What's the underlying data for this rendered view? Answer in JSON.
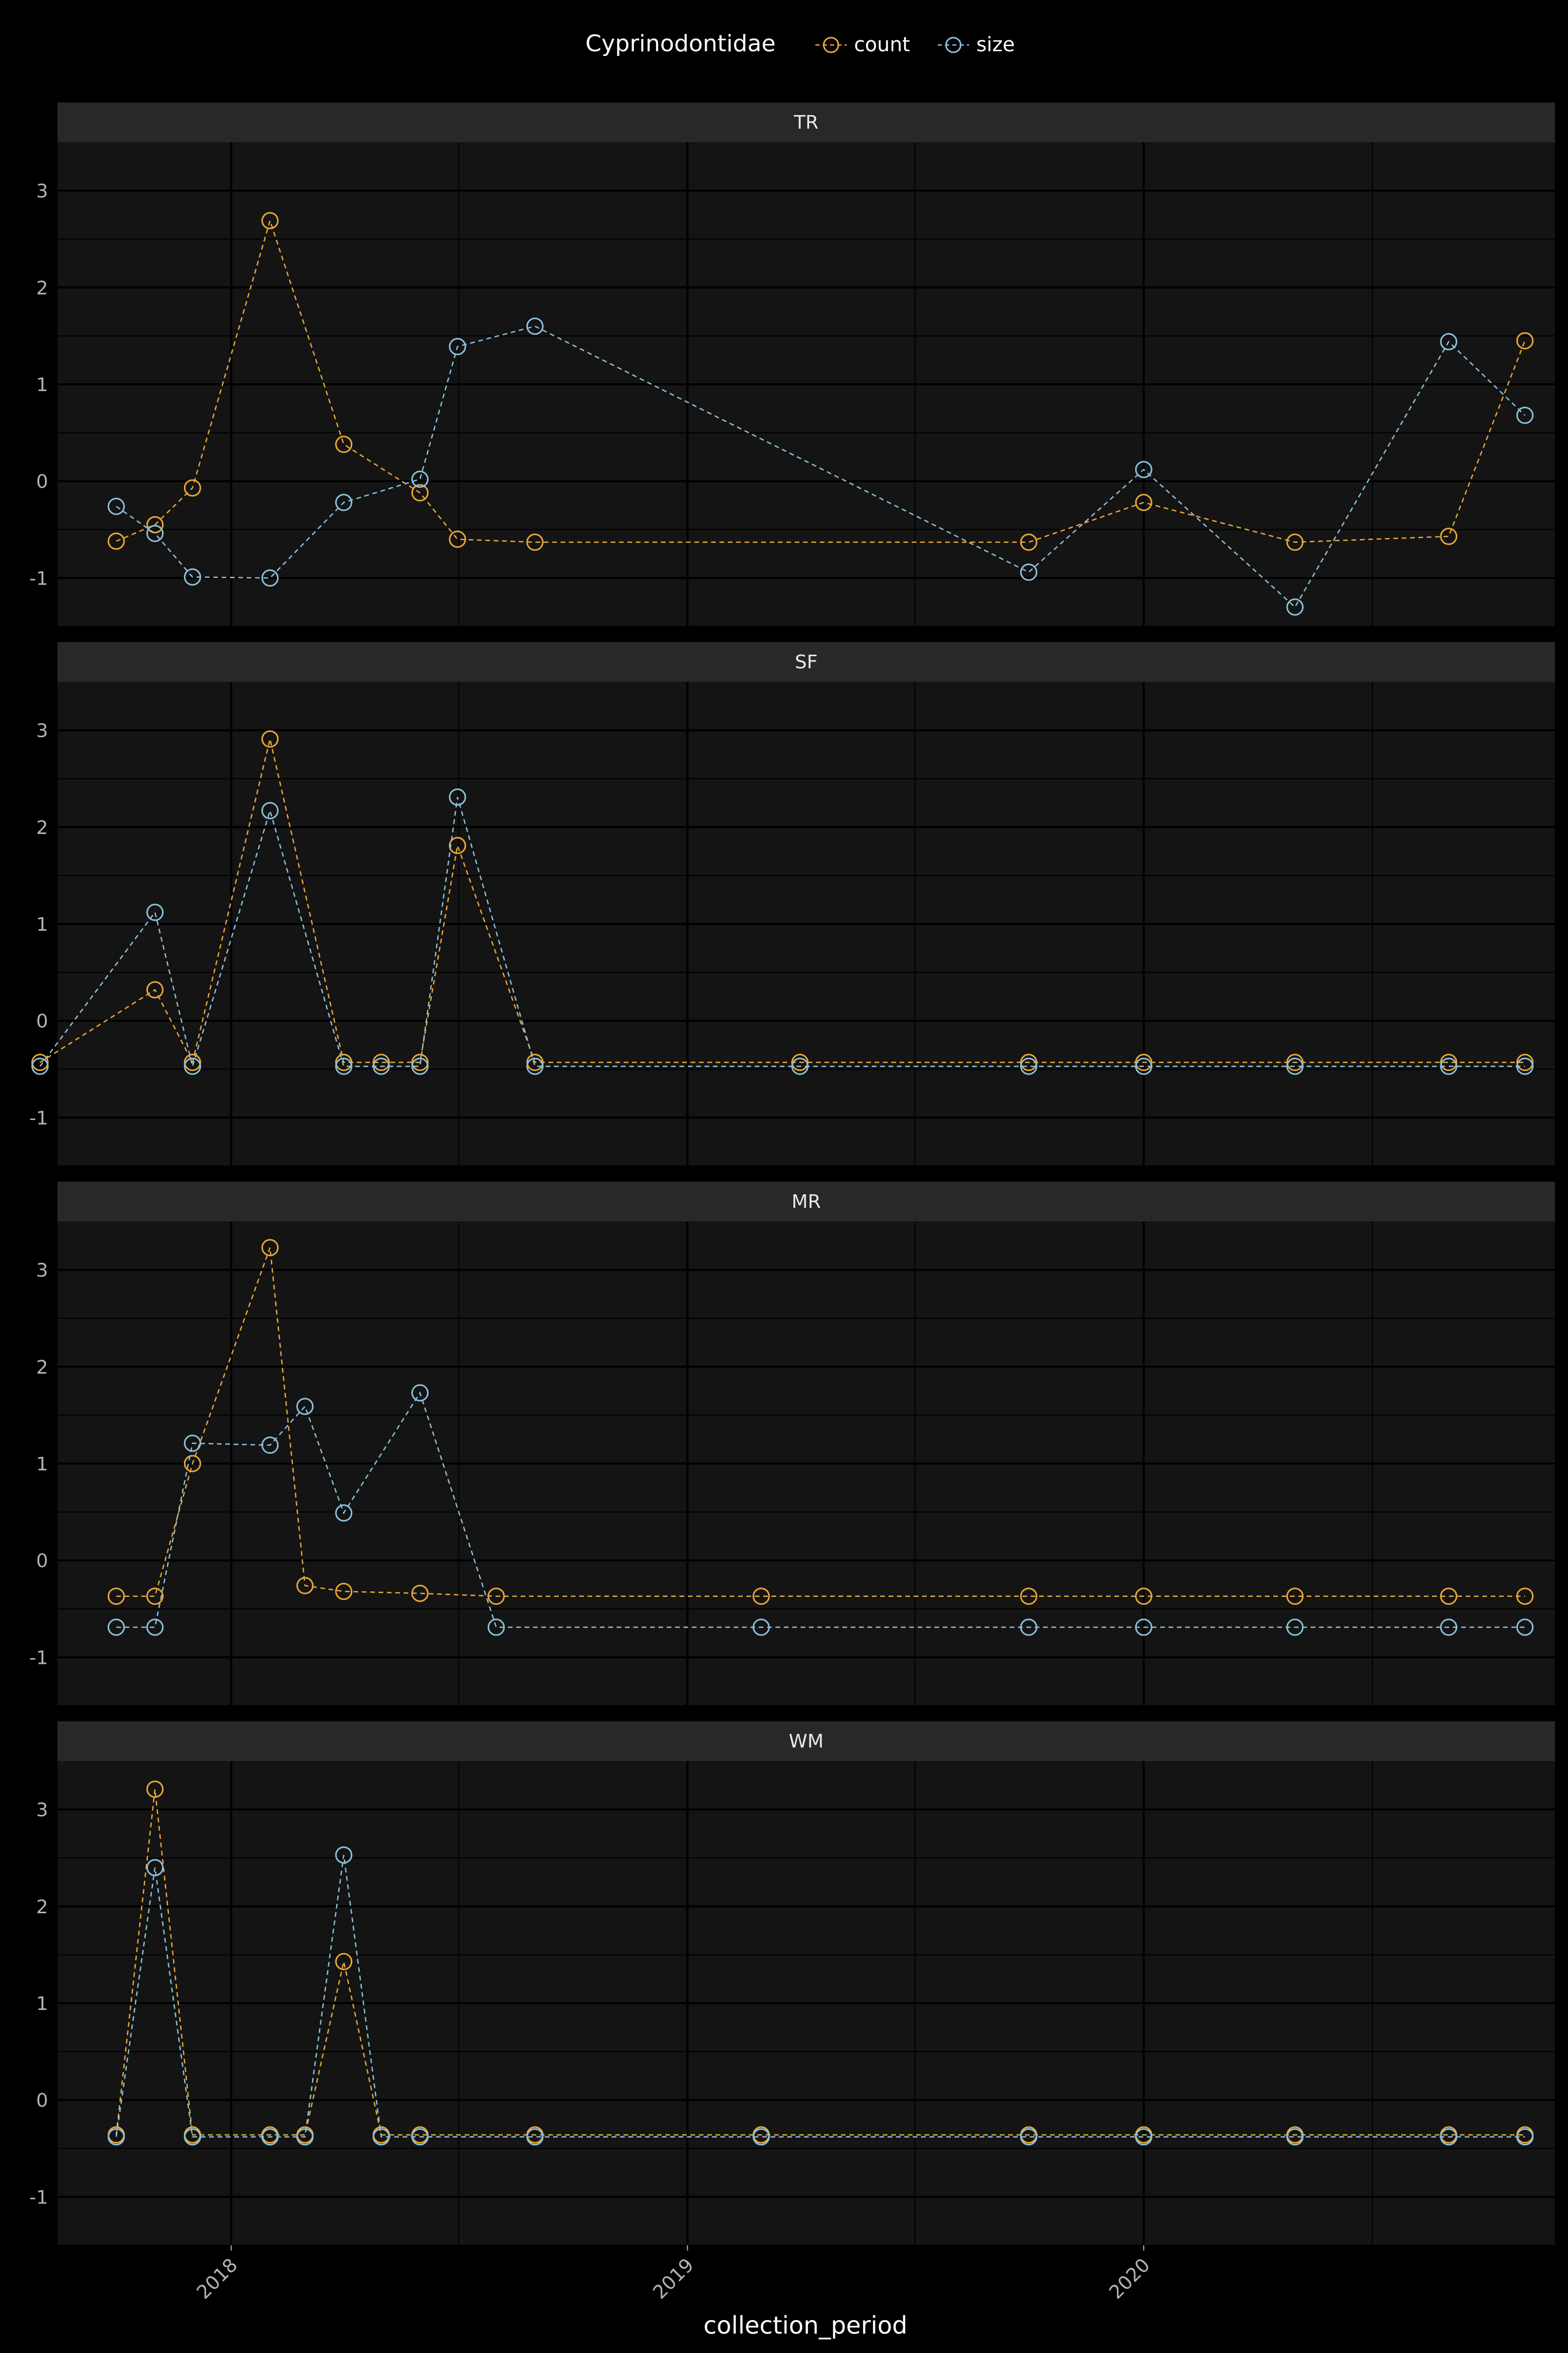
{
  "chart_data": {
    "type": "line",
    "facet_by": "site",
    "legend": {
      "title": "Cyprinodontidae",
      "position": "top"
    },
    "xlabel": "collection_period",
    "ylabel": "",
    "x_ticks": [
      "2018",
      "2019",
      "2020"
    ],
    "x_range": [
      "2017-08-15",
      "2020-11-25"
    ],
    "y_ticks": [
      -1,
      0,
      1,
      2,
      3
    ],
    "ylim": [
      -1.5,
      3.5
    ],
    "grid": true,
    "series_styles": [
      {
        "name": "count",
        "color": "#e8a736"
      },
      {
        "name": "size",
        "color": "#8cc0da"
      }
    ],
    "panels": [
      {
        "label": "TR",
        "series": [
          {
            "name": "count",
            "points": [
              [
                "2017-10-01",
                -0.62
              ],
              [
                "2017-11-01",
                -0.45
              ],
              [
                "2017-12-01",
                -0.07
              ],
              [
                "2018-02-01",
                2.69
              ],
              [
                "2018-04-01",
                0.38
              ],
              [
                "2018-06-01",
                -0.12
              ],
              [
                "2018-07-01",
                -0.6
              ],
              [
                "2018-09-01",
                -0.63
              ],
              [
                "2019-10-01",
                -0.63
              ],
              [
                "2020-01-01",
                -0.22
              ],
              [
                "2020-05-01",
                -0.63
              ],
              [
                "2020-09-01",
                -0.57
              ],
              [
                "2020-11-01",
                1.45
              ]
            ]
          },
          {
            "name": "size",
            "points": [
              [
                "2017-10-01",
                -0.26
              ],
              [
                "2017-11-01",
                -0.54
              ],
              [
                "2017-12-01",
                -0.99
              ],
              [
                "2018-02-01",
                -1.0
              ],
              [
                "2018-04-01",
                -0.22
              ],
              [
                "2018-06-01",
                0.02
              ],
              [
                "2018-07-01",
                1.39
              ],
              [
                "2018-09-01",
                1.6
              ],
              [
                "2019-10-01",
                -0.94
              ],
              [
                "2020-01-01",
                0.12
              ],
              [
                "2020-05-01",
                -1.3
              ],
              [
                "2020-09-01",
                1.44
              ],
              [
                "2020-11-01",
                0.68
              ]
            ]
          }
        ]
      },
      {
        "label": "SF",
        "series": [
          {
            "name": "count",
            "points": [
              [
                "2017-08-01",
                -0.43
              ],
              [
                "2017-11-01",
                0.32
              ],
              [
                "2017-12-01",
                -0.43
              ],
              [
                "2018-02-01",
                2.91
              ],
              [
                "2018-04-01",
                -0.43
              ],
              [
                "2018-05-01",
                -0.43
              ],
              [
                "2018-06-01",
                -0.43
              ],
              [
                "2018-07-01",
                1.81
              ],
              [
                "2018-09-01",
                -0.43
              ],
              [
                "2019-04-01",
                -0.43
              ],
              [
                "2019-10-01",
                -0.43
              ],
              [
                "2020-01-01",
                -0.43
              ],
              [
                "2020-05-01",
                -0.43
              ],
              [
                "2020-09-01",
                -0.43
              ],
              [
                "2020-11-01",
                -0.43
              ]
            ]
          },
          {
            "name": "size",
            "points": [
              [
                "2017-08-01",
                -0.47
              ],
              [
                "2017-11-01",
                1.12
              ],
              [
                "2017-12-01",
                -0.47
              ],
              [
                "2018-02-01",
                2.17
              ],
              [
                "2018-04-01",
                -0.47
              ],
              [
                "2018-05-01",
                -0.47
              ],
              [
                "2018-06-01",
                -0.47
              ],
              [
                "2018-07-01",
                2.31
              ],
              [
                "2018-09-01",
                -0.47
              ],
              [
                "2019-04-01",
                -0.47
              ],
              [
                "2019-10-01",
                -0.47
              ],
              [
                "2020-01-01",
                -0.47
              ],
              [
                "2020-05-01",
                -0.47
              ],
              [
                "2020-09-01",
                -0.47
              ],
              [
                "2020-11-01",
                -0.47
              ]
            ]
          }
        ]
      },
      {
        "label": "MR",
        "series": [
          {
            "name": "count",
            "points": [
              [
                "2017-10-01",
                -0.37
              ],
              [
                "2017-11-01",
                -0.37
              ],
              [
                "2017-12-01",
                1.0
              ],
              [
                "2018-02-01",
                3.23
              ],
              [
                "2018-03-01",
                -0.26
              ],
              [
                "2018-04-01",
                -0.32
              ],
              [
                "2018-06-01",
                -0.34
              ],
              [
                "2018-08-01",
                -0.37
              ],
              [
                "2019-03-01",
                -0.37
              ],
              [
                "2019-10-01",
                -0.37
              ],
              [
                "2020-01-01",
                -0.37
              ],
              [
                "2020-05-01",
                -0.37
              ],
              [
                "2020-09-01",
                -0.37
              ],
              [
                "2020-11-01",
                -0.37
              ]
            ]
          },
          {
            "name": "size",
            "points": [
              [
                "2017-10-01",
                -0.69
              ],
              [
                "2017-11-01",
                -0.69
              ],
              [
                "2017-12-01",
                1.21
              ],
              [
                "2018-02-01",
                1.19
              ],
              [
                "2018-03-01",
                1.59
              ],
              [
                "2018-04-01",
                0.49
              ],
              [
                "2018-06-01",
                1.73
              ],
              [
                "2018-08-01",
                -0.69
              ],
              [
                "2019-03-01",
                -0.69
              ],
              [
                "2019-10-01",
                -0.69
              ],
              [
                "2020-01-01",
                -0.69
              ],
              [
                "2020-05-01",
                -0.69
              ],
              [
                "2020-09-01",
                -0.69
              ],
              [
                "2020-11-01",
                -0.69
              ]
            ]
          }
        ]
      },
      {
        "label": "WM",
        "series": [
          {
            "name": "count",
            "points": [
              [
                "2017-10-01",
                -0.36
              ],
              [
                "2017-11-01",
                3.21
              ],
              [
                "2017-12-01",
                -0.36
              ],
              [
                "2018-02-01",
                -0.36
              ],
              [
                "2018-03-01",
                -0.36
              ],
              [
                "2018-04-01",
                1.43
              ],
              [
                "2018-05-01",
                -0.36
              ],
              [
                "2018-06-01",
                -0.36
              ],
              [
                "2018-09-01",
                -0.36
              ],
              [
                "2019-03-01",
                -0.36
              ],
              [
                "2019-10-01",
                -0.36
              ],
              [
                "2020-01-01",
                -0.36
              ],
              [
                "2020-05-01",
                -0.36
              ],
              [
                "2020-09-01",
                -0.36
              ],
              [
                "2020-11-01",
                -0.36
              ]
            ]
          },
          {
            "name": "size",
            "points": [
              [
                "2017-10-01",
                -0.38
              ],
              [
                "2017-11-01",
                2.4
              ],
              [
                "2017-12-01",
                -0.38
              ],
              [
                "2018-02-01",
                -0.38
              ],
              [
                "2018-03-01",
                -0.38
              ],
              [
                "2018-04-01",
                2.53
              ],
              [
                "2018-05-01",
                -0.38
              ],
              [
                "2018-06-01",
                -0.38
              ],
              [
                "2018-09-01",
                -0.38
              ],
              [
                "2019-03-01",
                -0.38
              ],
              [
                "2019-10-01",
                -0.38
              ],
              [
                "2020-01-01",
                -0.38
              ],
              [
                "2020-05-01",
                -0.38
              ],
              [
                "2020-09-01",
                -0.38
              ],
              [
                "2020-11-01",
                -0.38
              ]
            ]
          }
        ]
      }
    ]
  }
}
